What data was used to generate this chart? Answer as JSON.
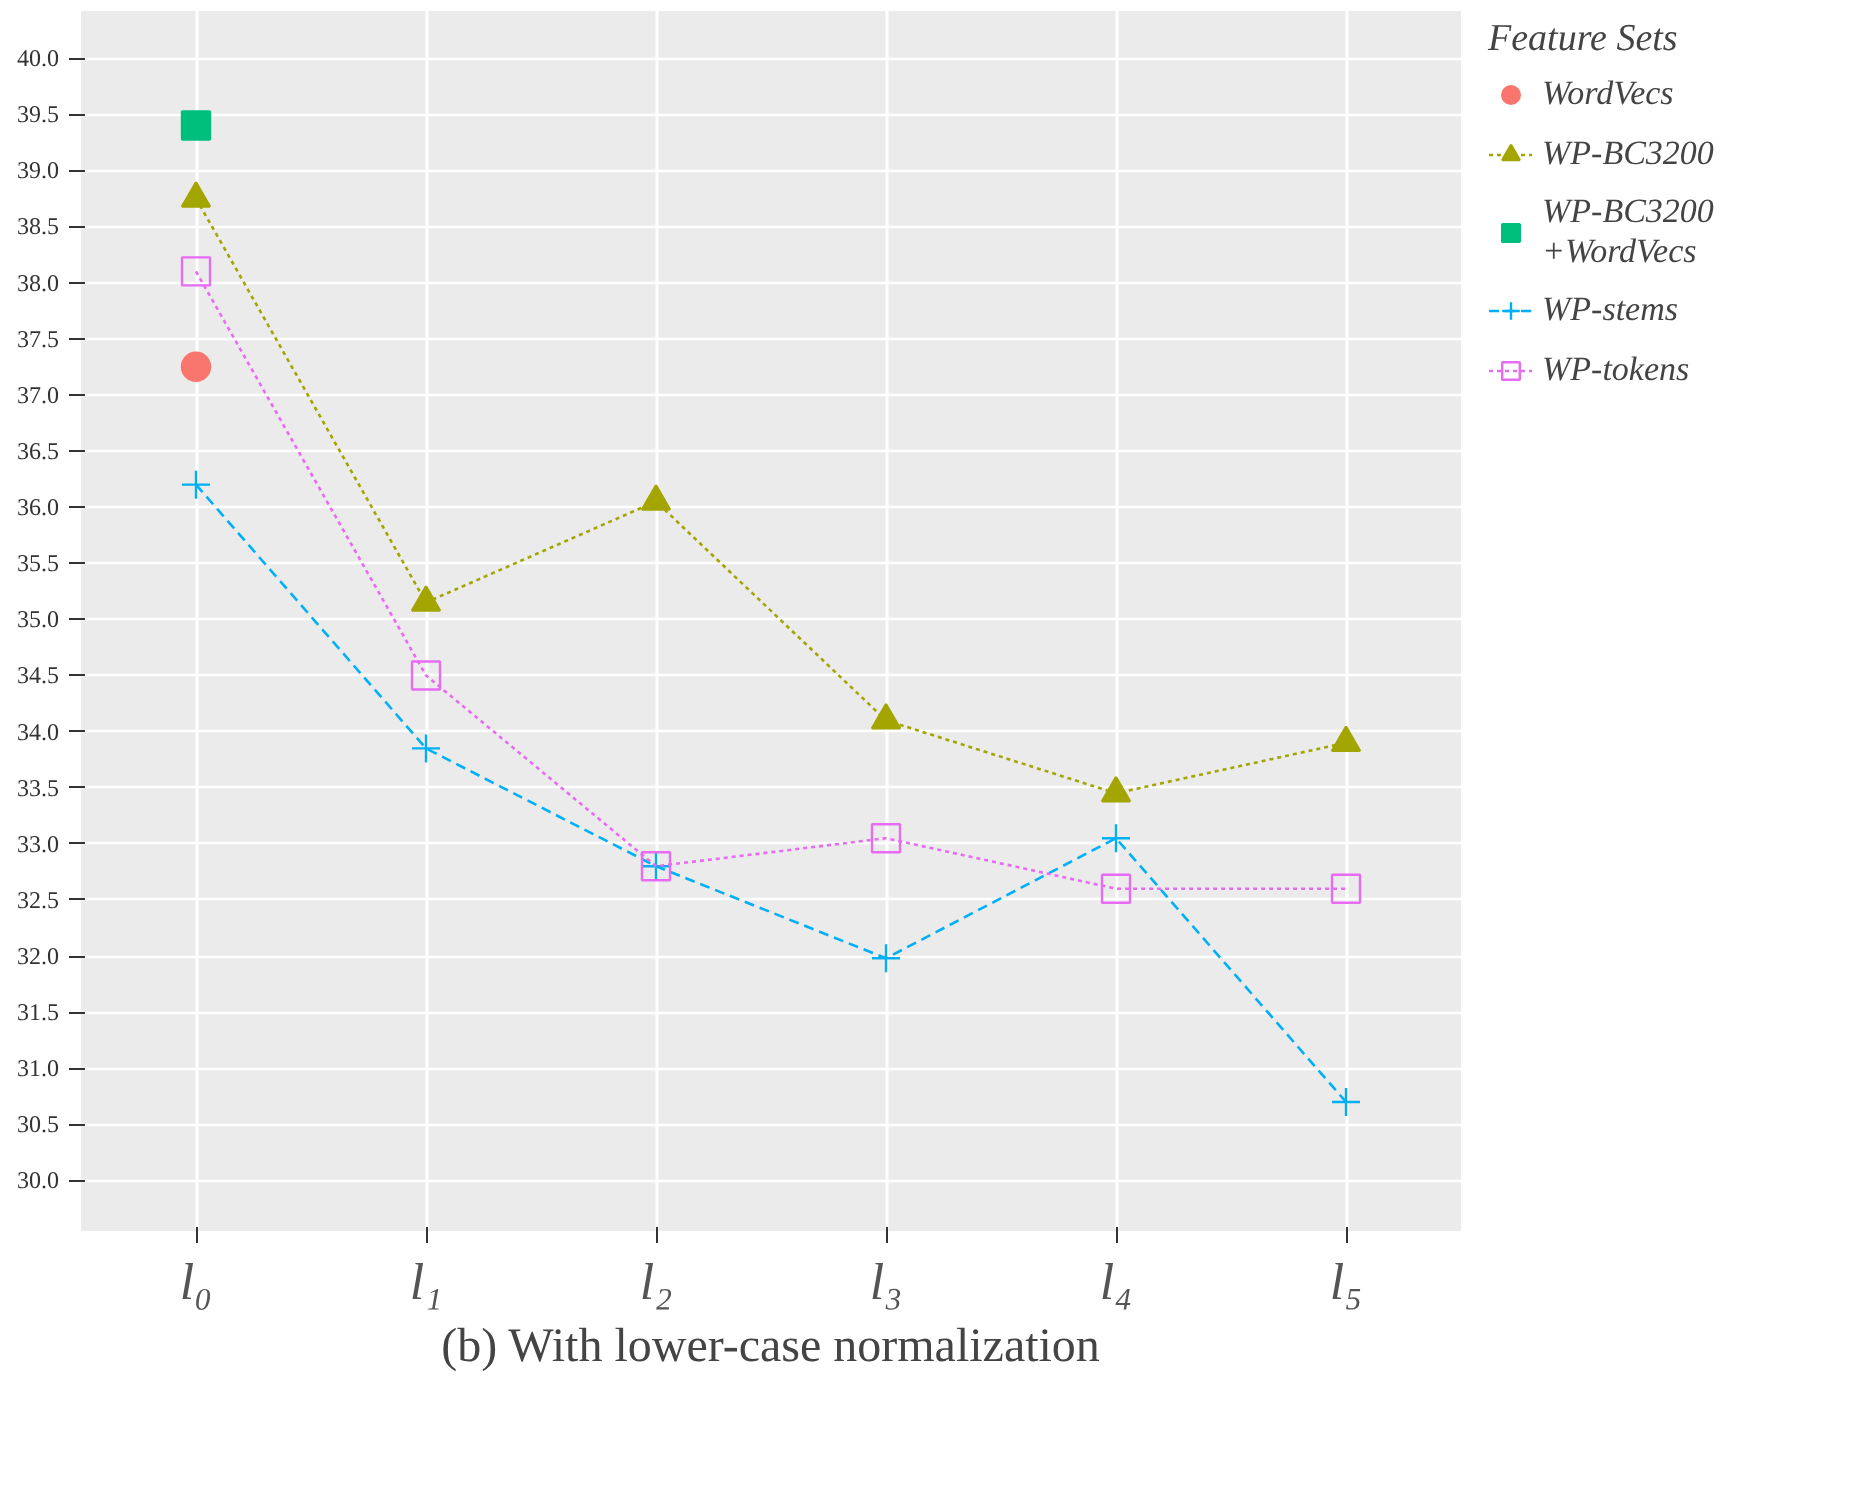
{
  "chart_data": {
    "type": "line",
    "xlabel": "(b) With lower-case normalization",
    "legend_title": "Feature Sets",
    "categories": [
      "l₀",
      "l₁",
      "l₂",
      "l₃",
      "l₄",
      "l₅"
    ],
    "ylim": [
      29.55,
      40.42
    ],
    "yticks": [
      {
        "value": 30,
        "label": "30.0"
      },
      30.5,
      {
        "value": 31,
        "label": "31.0"
      },
      31.5,
      {
        "value": 32,
        "label": "32.0"
      },
      32.5,
      {
        "value": 33,
        "label": "33.0"
      },
      33.5,
      {
        "value": 34,
        "label": "34.0"
      },
      34.5,
      {
        "value": 35,
        "label": "35.0"
      },
      35.5,
      {
        "value": 36,
        "label": "36.0"
      },
      36.5,
      {
        "value": 37,
        "label": "37.0"
      },
      37.5,
      {
        "value": 38,
        "label": "38.0"
      },
      38.5,
      {
        "value": 39,
        "label": "39.0"
      },
      39.5,
      {
        "value": 40,
        "label": "40.0"
      }
    ],
    "grid": true,
    "legend": "right",
    "series": [
      {
        "name": "WordVecs",
        "type": "scatter",
        "marker": "circle",
        "color": "#f8766d",
        "values": [
          37.25,
          null,
          null,
          null,
          null,
          null
        ]
      },
      {
        "name": "WP-BC3200",
        "marker": "triangle",
        "line_style": "dotted",
        "color": "#a3a500",
        "values": [
          38.75,
          35.15,
          36.05,
          34.1,
          33.45,
          33.9
        ]
      },
      {
        "name": "WP-BC3200\n+WordVecs",
        "type": "scatter",
        "marker": "square",
        "color": "#00bf7d",
        "values": [
          39.4,
          null,
          null,
          null,
          null,
          null
        ]
      },
      {
        "name": "WP-stems",
        "marker": "cross",
        "line_style": "dashed",
        "color": "#00b0f6",
        "values": [
          36.2,
          33.85,
          32.8,
          31.98,
          33.05,
          30.7
        ]
      },
      {
        "name": "WP-tokens",
        "marker": "square",
        "line_style": "dotted",
        "color": "#e76bf3",
        "values": [
          38.1,
          34.5,
          32.8,
          33.05,
          32.6,
          32.6
        ]
      }
    ]
  }
}
